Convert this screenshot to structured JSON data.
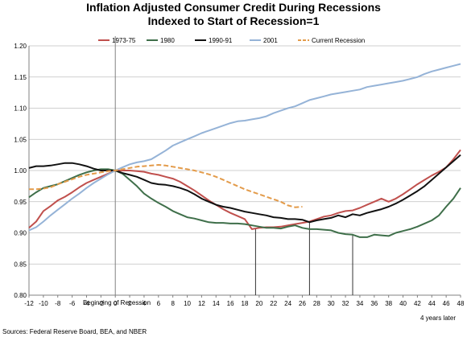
{
  "chart_data": {
    "type": "line",
    "title_line1": "Inflation Adjusted Consumer Credit During Recessions",
    "title_line2": "Indexed to Start of Recession=1",
    "xlabel": "",
    "ylabel": "",
    "xlim": [
      -12,
      48
    ],
    "ylim": [
      0.8,
      1.2
    ],
    "x_ticks": [
      -12,
      -10,
      -8,
      -6,
      -4,
      -2,
      0,
      2,
      4,
      6,
      8,
      10,
      12,
      14,
      16,
      18,
      20,
      22,
      24,
      26,
      28,
      30,
      32,
      34,
      36,
      38,
      40,
      42,
      44,
      46,
      48
    ],
    "y_ticks": [
      0.8,
      0.85,
      0.9,
      0.95,
      1.0,
      1.05,
      1.1,
      1.15,
      1.2
    ],
    "y_tick_labels": [
      "0.80",
      "0.85",
      "0.90",
      "0.95",
      "1.00",
      "1.05",
      "1.10",
      "1.15",
      "1.20"
    ],
    "grid": "horizontal",
    "legend_position": "top",
    "annotation_start": "Beginning of Recession",
    "annotation_end": "4 years later",
    "source": "Sources: Federal Reserve Board, BEA, and NBER",
    "troughs": [
      19.5,
      27,
      33
    ],
    "start_line_x": 0,
    "series": [
      {
        "name": "1973-75",
        "color": "#c0504d",
        "dash": "solid",
        "points": [
          [
            -12,
            0.908
          ],
          [
            -11,
            0.918
          ],
          [
            -10,
            0.935
          ],
          [
            -9,
            0.943
          ],
          [
            -8,
            0.952
          ],
          [
            -7,
            0.958
          ],
          [
            -6,
            0.965
          ],
          [
            -5,
            0.973
          ],
          [
            -4,
            0.98
          ],
          [
            -3,
            0.985
          ],
          [
            -2,
            0.99
          ],
          [
            -1,
            0.995
          ],
          [
            0,
            1.0
          ],
          [
            1,
            1.0
          ],
          [
            2,
            1.0
          ],
          [
            3,
            0.999
          ],
          [
            4,
            0.998
          ],
          [
            5,
            0.995
          ],
          [
            6,
            0.993
          ],
          [
            7,
            0.99
          ],
          [
            8,
            0.987
          ],
          [
            9,
            0.982
          ],
          [
            10,
            0.975
          ],
          [
            11,
            0.968
          ],
          [
            12,
            0.96
          ],
          [
            13,
            0.952
          ],
          [
            14,
            0.945
          ],
          [
            15,
            0.938
          ],
          [
            16,
            0.932
          ],
          [
            17,
            0.927
          ],
          [
            18,
            0.922
          ],
          [
            19,
            0.906
          ],
          [
            20,
            0.908
          ],
          [
            21,
            0.909
          ],
          [
            22,
            0.909
          ],
          [
            23,
            0.91
          ],
          [
            24,
            0.912
          ],
          [
            25,
            0.914
          ],
          [
            26,
            0.916
          ],
          [
            27,
            0.918
          ],
          [
            28,
            0.922
          ],
          [
            29,
            0.926
          ],
          [
            30,
            0.928
          ],
          [
            31,
            0.932
          ],
          [
            32,
            0.935
          ],
          [
            33,
            0.936
          ],
          [
            34,
            0.94
          ],
          [
            35,
            0.945
          ],
          [
            36,
            0.95
          ],
          [
            37,
            0.955
          ],
          [
            38,
            0.95
          ],
          [
            39,
            0.955
          ],
          [
            40,
            0.962
          ],
          [
            41,
            0.97
          ],
          [
            42,
            0.978
          ],
          [
            43,
            0.985
          ],
          [
            44,
            0.992
          ],
          [
            45,
            0.998
          ],
          [
            46,
            1.005
          ],
          [
            47,
            1.018
          ],
          [
            48,
            1.033
          ]
        ]
      },
      {
        "name": "1980",
        "color": "#3f6f4a",
        "dash": "solid",
        "points": [
          [
            -12,
            0.957
          ],
          [
            -11,
            0.965
          ],
          [
            -10,
            0.972
          ],
          [
            -9,
            0.975
          ],
          [
            -8,
            0.978
          ],
          [
            -7,
            0.983
          ],
          [
            -6,
            0.988
          ],
          [
            -5,
            0.993
          ],
          [
            -4,
            0.997
          ],
          [
            -3,
            1.0
          ],
          [
            -2,
            1.002
          ],
          [
            -1,
            1.002
          ],
          [
            0,
            1.0
          ],
          [
            1,
            0.995
          ],
          [
            2,
            0.985
          ],
          [
            3,
            0.975
          ],
          [
            4,
            0.963
          ],
          [
            5,
            0.955
          ],
          [
            6,
            0.948
          ],
          [
            7,
            0.942
          ],
          [
            8,
            0.935
          ],
          [
            9,
            0.93
          ],
          [
            10,
            0.925
          ],
          [
            11,
            0.923
          ],
          [
            12,
            0.92
          ],
          [
            13,
            0.917
          ],
          [
            14,
            0.916
          ],
          [
            15,
            0.916
          ],
          [
            16,
            0.915
          ],
          [
            17,
            0.915
          ],
          [
            18,
            0.914
          ],
          [
            19,
            0.912
          ],
          [
            20,
            0.91
          ],
          [
            21,
            0.908
          ],
          [
            22,
            0.908
          ],
          [
            23,
            0.907
          ],
          [
            24,
            0.91
          ],
          [
            25,
            0.912
          ],
          [
            26,
            0.908
          ],
          [
            27,
            0.906
          ],
          [
            28,
            0.906
          ],
          [
            29,
            0.905
          ],
          [
            30,
            0.904
          ],
          [
            31,
            0.9
          ],
          [
            32,
            0.898
          ],
          [
            33,
            0.897
          ],
          [
            34,
            0.893
          ],
          [
            35,
            0.893
          ],
          [
            36,
            0.897
          ],
          [
            37,
            0.896
          ],
          [
            38,
            0.895
          ],
          [
            39,
            0.9
          ],
          [
            40,
            0.903
          ],
          [
            41,
            0.906
          ],
          [
            42,
            0.91
          ],
          [
            43,
            0.915
          ],
          [
            44,
            0.92
          ],
          [
            45,
            0.928
          ],
          [
            46,
            0.942
          ],
          [
            47,
            0.955
          ],
          [
            48,
            0.972
          ]
        ]
      },
      {
        "name": "1990-91",
        "color": "#111111",
        "dash": "solid",
        "points": [
          [
            -12,
            1.004
          ],
          [
            -11,
            1.007
          ],
          [
            -10,
            1.007
          ],
          [
            -9,
            1.008
          ],
          [
            -8,
            1.01
          ],
          [
            -7,
            1.012
          ],
          [
            -6,
            1.012
          ],
          [
            -5,
            1.01
          ],
          [
            -4,
            1.007
          ],
          [
            -3,
            1.003
          ],
          [
            -2,
            1.0
          ],
          [
            -1,
            1.0
          ],
          [
            0,
            1.0
          ],
          [
            1,
            0.996
          ],
          [
            2,
            0.993
          ],
          [
            3,
            0.99
          ],
          [
            4,
            0.985
          ],
          [
            5,
            0.98
          ],
          [
            6,
            0.978
          ],
          [
            7,
            0.977
          ],
          [
            8,
            0.975
          ],
          [
            9,
            0.972
          ],
          [
            10,
            0.968
          ],
          [
            11,
            0.962
          ],
          [
            12,
            0.955
          ],
          [
            13,
            0.95
          ],
          [
            14,
            0.945
          ],
          [
            15,
            0.942
          ],
          [
            16,
            0.94
          ],
          [
            17,
            0.937
          ],
          [
            18,
            0.934
          ],
          [
            19,
            0.932
          ],
          [
            20,
            0.93
          ],
          [
            21,
            0.928
          ],
          [
            22,
            0.925
          ],
          [
            23,
            0.924
          ],
          [
            24,
            0.922
          ],
          [
            25,
            0.922
          ],
          [
            26,
            0.921
          ],
          [
            27,
            0.917
          ],
          [
            28,
            0.92
          ],
          [
            29,
            0.922
          ],
          [
            30,
            0.924
          ],
          [
            31,
            0.928
          ],
          [
            32,
            0.925
          ],
          [
            33,
            0.93
          ],
          [
            34,
            0.928
          ],
          [
            35,
            0.932
          ],
          [
            36,
            0.935
          ],
          [
            37,
            0.938
          ],
          [
            38,
            0.942
          ],
          [
            39,
            0.947
          ],
          [
            40,
            0.953
          ],
          [
            41,
            0.96
          ],
          [
            42,
            0.967
          ],
          [
            43,
            0.975
          ],
          [
            44,
            0.985
          ],
          [
            45,
            0.995
          ],
          [
            46,
            1.005
          ],
          [
            47,
            1.015
          ],
          [
            48,
            1.025
          ]
        ]
      },
      {
        "name": "2001",
        "color": "#95b3d7",
        "dash": "solid",
        "points": [
          [
            -12,
            0.904
          ],
          [
            -11,
            0.909
          ],
          [
            -10,
            0.918
          ],
          [
            -9,
            0.928
          ],
          [
            -8,
            0.937
          ],
          [
            -7,
            0.946
          ],
          [
            -6,
            0.955
          ],
          [
            -5,
            0.963
          ],
          [
            -4,
            0.972
          ],
          [
            -3,
            0.98
          ],
          [
            -2,
            0.987
          ],
          [
            -1,
            0.994
          ],
          [
            0,
            1.0
          ],
          [
            1,
            1.005
          ],
          [
            2,
            1.01
          ],
          [
            3,
            1.013
          ],
          [
            4,
            1.015
          ],
          [
            5,
            1.018
          ],
          [
            6,
            1.025
          ],
          [
            7,
            1.032
          ],
          [
            8,
            1.04
          ],
          [
            9,
            1.045
          ],
          [
            10,
            1.05
          ],
          [
            11,
            1.055
          ],
          [
            12,
            1.06
          ],
          [
            13,
            1.064
          ],
          [
            14,
            1.068
          ],
          [
            15,
            1.072
          ],
          [
            16,
            1.076
          ],
          [
            17,
            1.079
          ],
          [
            18,
            1.08
          ],
          [
            19,
            1.082
          ],
          [
            20,
            1.084
          ],
          [
            21,
            1.087
          ],
          [
            22,
            1.092
          ],
          [
            23,
            1.096
          ],
          [
            24,
            1.1
          ],
          [
            25,
            1.103
          ],
          [
            26,
            1.108
          ],
          [
            27,
            1.113
          ],
          [
            28,
            1.116
          ],
          [
            29,
            1.119
          ],
          [
            30,
            1.122
          ],
          [
            31,
            1.124
          ],
          [
            32,
            1.126
          ],
          [
            33,
            1.128
          ],
          [
            34,
            1.13
          ],
          [
            35,
            1.134
          ],
          [
            36,
            1.136
          ],
          [
            37,
            1.138
          ],
          [
            38,
            1.14
          ],
          [
            39,
            1.142
          ],
          [
            40,
            1.144
          ],
          [
            41,
            1.147
          ],
          [
            42,
            1.15
          ],
          [
            43,
            1.155
          ],
          [
            44,
            1.159
          ],
          [
            45,
            1.162
          ],
          [
            46,
            1.165
          ],
          [
            47,
            1.168
          ],
          [
            48,
            1.171
          ]
        ]
      },
      {
        "name": "Current Recession",
        "color": "#e39b4a",
        "dash": "dashed",
        "points": [
          [
            -12,
            0.97
          ],
          [
            -11,
            0.97
          ],
          [
            -10,
            0.971
          ],
          [
            -9,
            0.973
          ],
          [
            -8,
            0.978
          ],
          [
            -7,
            0.982
          ],
          [
            -6,
            0.986
          ],
          [
            -5,
            0.99
          ],
          [
            -4,
            0.993
          ],
          [
            -3,
            0.995
          ],
          [
            -2,
            0.997
          ],
          [
            -1,
            0.999
          ],
          [
            0,
            1.0
          ],
          [
            1,
            1.002
          ],
          [
            2,
            1.004
          ],
          [
            3,
            1.006
          ],
          [
            4,
            1.007
          ],
          [
            5,
            1.008
          ],
          [
            6,
            1.009
          ],
          [
            7,
            1.008
          ],
          [
            8,
            1.006
          ],
          [
            9,
            1.004
          ],
          [
            10,
            1.002
          ],
          [
            11,
            1.0
          ],
          [
            12,
            0.997
          ],
          [
            13,
            0.994
          ],
          [
            14,
            0.99
          ],
          [
            15,
            0.985
          ],
          [
            16,
            0.98
          ],
          [
            17,
            0.975
          ],
          [
            18,
            0.97
          ],
          [
            19,
            0.966
          ],
          [
            20,
            0.962
          ],
          [
            21,
            0.958
          ],
          [
            22,
            0.954
          ],
          [
            23,
            0.95
          ],
          [
            24,
            0.944
          ],
          [
            25,
            0.941
          ],
          [
            26,
            0.942
          ]
        ]
      }
    ]
  }
}
